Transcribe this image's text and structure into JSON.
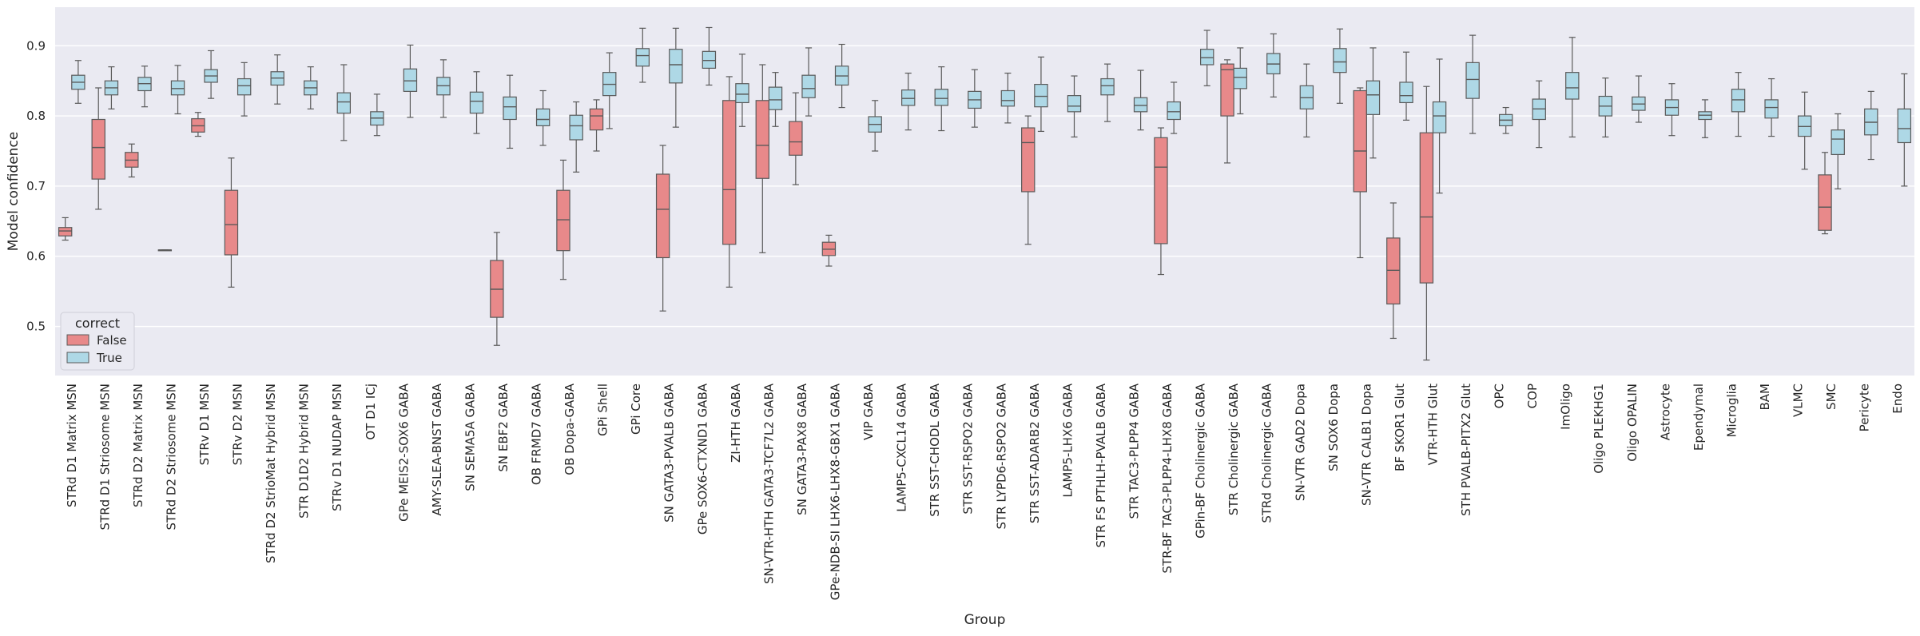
{
  "chart_data": {
    "type": "box",
    "xlabel": "Group",
    "ylabel": "Model confidence",
    "ylim": [
      0.43,
      0.955
    ],
    "yticks": [
      0.5,
      0.6,
      0.7,
      0.8,
      0.9
    ],
    "grid": true,
    "legend": {
      "title": "correct",
      "placement": "lower-left",
      "entries": [
        {
          "label": "False",
          "color": "#e8898a"
        },
        {
          "label": "True",
          "color": "#aed8e6"
        }
      ]
    },
    "colors": {
      "False": "#e8898a",
      "True": "#aed8e6",
      "plot_bg": "#eaeaf2",
      "grid": "#ffffff",
      "line": "#5a5a5a"
    },
    "categories": [
      "STRd D1 Matrix MSN",
      "STRd D1 Striosome MSN",
      "STRd D2 Matrix MSN",
      "STRd D2 Striosome MSN",
      "STRv D1 MSN",
      "STRv D2 MSN",
      "STRd D2 StrioMat Hybrid MSN",
      "STR D1D2 Hybrid MSN",
      "STRv D1 NUDAP MSN",
      "OT D1 ICj",
      "GPe MEIS2-SOX6 GABA",
      "AMY-SLEA-BNST GABA",
      "SN SEMA5A GABA",
      "SN EBF2 GABA",
      "OB FRMD7 GABA",
      "OB Dopa-GABA",
      "GPi Shell",
      "GPi Core",
      "SN GATA3-PVALB GABA",
      "GPe SOX6-CTXND1 GABA",
      "ZI-HTH GABA",
      "SN-VTR-HTH GATA3-TCF7L2 GABA",
      "SN GATA3-PAX8 GABA",
      "GPe-NDB-SI LHX6-LHX8-GBX1 GABA",
      "VIP GABA",
      "LAMP5-CXCL14 GABA",
      "STR SST-CHODL GABA",
      "STR SST-RSPO2 GABA",
      "STR LYPD6-RSPO2 GABA",
      "STR SST-ADARB2 GABA",
      "LAMP5-LHX6 GABA",
      "STR FS PTHLH-PVALB GABA",
      "STR TAC3-PLPP4 GABA",
      "STR-BF TAC3-PLPP4-LHX8 GABA",
      "GPin-BF Cholinergic GABA",
      "STR Cholinergic GABA",
      "STRd Cholinergic GABA",
      "SN-VTR GAD2 Dopa",
      "SN SOX6 Dopa",
      "SN-VTR CALB1 Dopa",
      "BF SKOR1 Glut",
      "VTR-HTH Glut",
      "STH PVALB-PITX2 Glut",
      "OPC",
      "COP",
      "ImOligo",
      "Oligo PLEKHG1",
      "Oligo OPALIN",
      "Astrocyte",
      "Ependymal",
      "Microglia",
      "BAM",
      "VLMC",
      "SMC",
      "Pericyte",
      "Endo"
    ],
    "series": [
      {
        "name": "False",
        "boxes": [
          [
            0,
            0.623,
            0.629,
            0.636,
            0.641,
            0.655
          ],
          [
            1,
            0.667,
            0.71,
            0.755,
            0.795,
            0.84
          ],
          [
            2,
            0.713,
            0.727,
            0.737,
            0.748,
            0.76
          ],
          [
            3,
            0.609,
            0.609,
            0.609,
            0.609,
            0.609
          ],
          [
            4,
            0.771,
            0.777,
            0.786,
            0.796,
            0.805
          ],
          [
            5,
            0.556,
            0.602,
            0.645,
            0.694,
            0.74
          ],
          [
            13,
            0.473,
            0.513,
            0.553,
            0.594,
            0.634
          ],
          [
            15,
            0.567,
            0.608,
            0.652,
            0.694,
            0.737
          ],
          [
            16,
            0.75,
            0.78,
            0.8,
            0.81,
            0.823
          ],
          [
            18,
            0.522,
            0.598,
            0.667,
            0.717,
            0.758
          ],
          [
            20,
            0.556,
            0.617,
            0.695,
            0.822,
            0.856
          ],
          [
            21,
            0.605,
            0.711,
            0.758,
            0.822,
            0.873
          ],
          [
            22,
            0.702,
            0.744,
            0.763,
            0.792,
            0.833
          ],
          [
            23,
            0.586,
            0.601,
            0.61,
            0.62,
            0.63
          ],
          [
            29,
            0.617,
            0.692,
            0.762,
            0.783,
            0.8
          ],
          [
            33,
            0.574,
            0.618,
            0.727,
            0.769,
            0.783
          ],
          [
            35,
            0.733,
            0.8,
            0.866,
            0.874,
            0.88
          ],
          [
            39,
            0.598,
            0.692,
            0.75,
            0.836,
            0.84
          ],
          [
            40,
            0.483,
            0.532,
            0.58,
            0.626,
            0.676
          ],
          [
            41,
            0.452,
            0.562,
            0.656,
            0.776,
            0.842
          ],
          [
            53,
            0.632,
            0.637,
            0.67,
            0.716,
            0.748
          ]
        ]
      },
      {
        "name": "True",
        "boxes": [
          [
            0,
            0.818,
            0.838,
            0.848,
            0.858,
            0.879
          ],
          [
            1,
            0.81,
            0.83,
            0.84,
            0.85,
            0.87
          ],
          [
            2,
            0.813,
            0.836,
            0.846,
            0.855,
            0.871
          ],
          [
            3,
            0.803,
            0.83,
            0.839,
            0.85,
            0.872
          ],
          [
            4,
            0.825,
            0.848,
            0.857,
            0.866,
            0.893
          ],
          [
            5,
            0.8,
            0.83,
            0.843,
            0.853,
            0.876
          ],
          [
            6,
            0.817,
            0.844,
            0.854,
            0.863,
            0.887
          ],
          [
            7,
            0.81,
            0.83,
            0.84,
            0.85,
            0.87
          ],
          [
            8,
            0.765,
            0.804,
            0.82,
            0.833,
            0.873
          ],
          [
            9,
            0.772,
            0.787,
            0.797,
            0.806,
            0.831
          ],
          [
            10,
            0.798,
            0.835,
            0.85,
            0.867,
            0.901
          ],
          [
            11,
            0.798,
            0.83,
            0.843,
            0.855,
            0.88
          ],
          [
            12,
            0.775,
            0.804,
            0.821,
            0.834,
            0.863
          ],
          [
            13,
            0.754,
            0.795,
            0.813,
            0.827,
            0.858
          ],
          [
            14,
            0.758,
            0.786,
            0.795,
            0.81,
            0.836
          ],
          [
            15,
            0.72,
            0.766,
            0.786,
            0.801,
            0.82
          ],
          [
            16,
            0.782,
            0.829,
            0.845,
            0.862,
            0.89
          ],
          [
            17,
            0.848,
            0.871,
            0.886,
            0.896,
            0.925
          ],
          [
            18,
            0.784,
            0.847,
            0.873,
            0.895,
            0.925
          ],
          [
            19,
            0.844,
            0.868,
            0.879,
            0.892,
            0.926
          ],
          [
            20,
            0.785,
            0.819,
            0.831,
            0.846,
            0.888
          ],
          [
            21,
            0.785,
            0.809,
            0.823,
            0.841,
            0.862
          ],
          [
            22,
            0.8,
            0.826,
            0.839,
            0.858,
            0.897
          ],
          [
            23,
            0.812,
            0.844,
            0.857,
            0.871,
            0.902
          ],
          [
            24,
            0.75,
            0.777,
            0.788,
            0.799,
            0.822
          ],
          [
            25,
            0.78,
            0.815,
            0.825,
            0.837,
            0.861
          ],
          [
            26,
            0.779,
            0.815,
            0.825,
            0.838,
            0.87
          ],
          [
            27,
            0.784,
            0.811,
            0.823,
            0.835,
            0.866
          ],
          [
            28,
            0.79,
            0.814,
            0.822,
            0.836,
            0.861
          ],
          [
            29,
            0.778,
            0.813,
            0.828,
            0.845,
            0.884
          ],
          [
            30,
            0.77,
            0.806,
            0.814,
            0.829,
            0.857
          ],
          [
            31,
            0.792,
            0.83,
            0.843,
            0.853,
            0.874
          ],
          [
            32,
            0.78,
            0.806,
            0.815,
            0.826,
            0.865
          ],
          [
            33,
            0.775,
            0.795,
            0.806,
            0.82,
            0.848
          ],
          [
            34,
            0.843,
            0.873,
            0.883,
            0.895,
            0.922
          ],
          [
            35,
            0.803,
            0.839,
            0.855,
            0.868,
            0.897
          ],
          [
            36,
            0.827,
            0.86,
            0.874,
            0.889,
            0.917
          ],
          [
            37,
            0.77,
            0.81,
            0.826,
            0.843,
            0.874
          ],
          [
            38,
            0.818,
            0.862,
            0.877,
            0.896,
            0.924
          ],
          [
            39,
            0.74,
            0.802,
            0.83,
            0.85,
            0.897
          ],
          [
            40,
            0.794,
            0.819,
            0.829,
            0.848,
            0.891
          ],
          [
            41,
            0.69,
            0.776,
            0.8,
            0.82,
            0.881
          ],
          [
            42,
            0.775,
            0.825,
            0.852,
            0.876,
            0.915
          ],
          [
            43,
            0.775,
            0.786,
            0.794,
            0.802,
            0.812
          ],
          [
            44,
            0.755,
            0.795,
            0.81,
            0.824,
            0.85
          ],
          [
            45,
            0.77,
            0.824,
            0.84,
            0.862,
            0.912
          ],
          [
            46,
            0.77,
            0.8,
            0.814,
            0.828,
            0.854
          ],
          [
            47,
            0.791,
            0.808,
            0.817,
            0.827,
            0.857
          ],
          [
            48,
            0.772,
            0.801,
            0.812,
            0.823,
            0.846
          ],
          [
            49,
            0.769,
            0.795,
            0.801,
            0.806,
            0.823
          ],
          [
            50,
            0.771,
            0.806,
            0.823,
            0.838,
            0.862
          ],
          [
            51,
            0.771,
            0.797,
            0.812,
            0.823,
            0.853
          ],
          [
            52,
            0.724,
            0.771,
            0.785,
            0.8,
            0.834
          ],
          [
            53,
            0.696,
            0.745,
            0.767,
            0.78,
            0.803
          ],
          [
            54,
            0.738,
            0.773,
            0.791,
            0.81,
            0.835
          ],
          [
            55,
            0.7,
            0.762,
            0.782,
            0.81,
            0.86
          ]
        ]
      }
    ]
  }
}
